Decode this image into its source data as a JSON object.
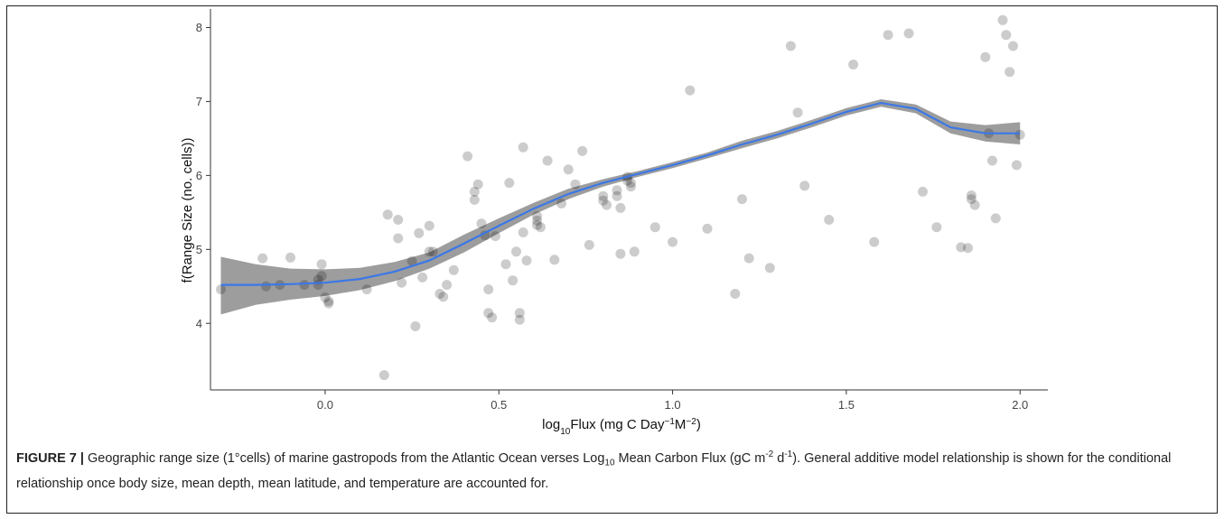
{
  "chart_data": {
    "type": "scatter",
    "xlabel_html": "log<tspan baseline-shift='sub' font-size='10'>10</tspan>Flux (mg C Day<tspan baseline-shift='super' font-size='10'>−1</tspan>M<tspan baseline-shift='super' font-size='10'>−2</tspan>)",
    "ylabel": "f(Range Size (no. cells))",
    "xlim": [
      -0.33,
      2.08
    ],
    "ylim": [
      3.1,
      8.25
    ],
    "x_ticks": [
      "0.0",
      "0.5",
      "1.0",
      "1.5",
      "2.0"
    ],
    "x_tick_values": [
      0.0,
      0.5,
      1.0,
      1.5,
      2.0
    ],
    "y_ticks": [
      "4",
      "5",
      "6",
      "7",
      "8"
    ],
    "y_tick_values": [
      4,
      5,
      6,
      7,
      8
    ],
    "grid": false,
    "point_color": "#000000",
    "point_opacity": 0.2,
    "smooth_color": "#3b78e7",
    "ribbon_color": "#8c8c8c",
    "smooth_fit": {
      "x": [
        -0.3,
        -0.2,
        -0.1,
        0.0,
        0.1,
        0.2,
        0.3,
        0.4,
        0.5,
        0.6,
        0.7,
        0.8,
        0.9,
        1.0,
        1.1,
        1.2,
        1.3,
        1.4,
        1.5,
        1.6,
        1.7,
        1.8,
        1.9,
        2.0
      ],
      "y": [
        4.52,
        4.52,
        4.53,
        4.55,
        4.6,
        4.7,
        4.85,
        5.08,
        5.32,
        5.55,
        5.75,
        5.9,
        6.02,
        6.14,
        6.27,
        6.42,
        6.55,
        6.7,
        6.86,
        6.98,
        6.9,
        6.65,
        6.57,
        6.57
      ],
      "lower": [
        4.12,
        4.25,
        4.32,
        4.37,
        4.45,
        4.57,
        4.74,
        4.96,
        5.22,
        5.47,
        5.68,
        5.85,
        5.98,
        6.1,
        6.23,
        6.37,
        6.5,
        6.65,
        6.81,
        6.93,
        6.84,
        6.57,
        6.46,
        6.42
      ],
      "upper": [
        4.9,
        4.8,
        4.74,
        4.73,
        4.75,
        4.83,
        4.96,
        5.2,
        5.42,
        5.63,
        5.82,
        5.95,
        6.06,
        6.18,
        6.31,
        6.47,
        6.6,
        6.75,
        6.91,
        7.03,
        6.96,
        6.73,
        6.68,
        6.72
      ]
    },
    "points": [
      [
        -0.3,
        4.46
      ],
      [
        -0.18,
        4.88
      ],
      [
        -0.17,
        4.5
      ],
      [
        -0.13,
        4.52
      ],
      [
        -0.1,
        4.89
      ],
      [
        -0.06,
        4.52
      ],
      [
        -0.02,
        4.52
      ],
      [
        -0.02,
        4.59
      ],
      [
        -0.01,
        4.8
      ],
      [
        -0.01,
        4.64
      ],
      [
        0.0,
        4.35
      ],
      [
        0.01,
        4.27
      ],
      [
        0.01,
        4.3
      ],
      [
        0.12,
        4.46
      ],
      [
        0.17,
        3.3
      ],
      [
        0.18,
        5.47
      ],
      [
        0.21,
        5.4
      ],
      [
        0.21,
        5.15
      ],
      [
        0.22,
        4.55
      ],
      [
        0.25,
        4.84
      ],
      [
        0.26,
        3.96
      ],
      [
        0.27,
        5.22
      ],
      [
        0.28,
        4.62
      ],
      [
        0.3,
        5.32
      ],
      [
        0.3,
        4.97
      ],
      [
        0.31,
        4.97
      ],
      [
        0.33,
        4.4
      ],
      [
        0.34,
        4.36
      ],
      [
        0.35,
        4.52
      ],
      [
        0.37,
        4.72
      ],
      [
        0.41,
        6.26
      ],
      [
        0.43,
        5.67
      ],
      [
        0.43,
        5.78
      ],
      [
        0.44,
        5.88
      ],
      [
        0.45,
        5.35
      ],
      [
        0.46,
        5.19
      ],
      [
        0.47,
        4.46
      ],
      [
        0.47,
        4.14
      ],
      [
        0.48,
        4.08
      ],
      [
        0.49,
        5.18
      ],
      [
        0.52,
        4.8
      ],
      [
        0.53,
        5.9
      ],
      [
        0.54,
        4.58
      ],
      [
        0.55,
        4.97
      ],
      [
        0.56,
        4.05
      ],
      [
        0.56,
        4.14
      ],
      [
        0.57,
        6.38
      ],
      [
        0.57,
        5.23
      ],
      [
        0.58,
        4.85
      ],
      [
        0.61,
        5.45
      ],
      [
        0.61,
        5.39
      ],
      [
        0.61,
        5.33
      ],
      [
        0.62,
        5.3
      ],
      [
        0.64,
        6.2
      ],
      [
        0.66,
        4.86
      ],
      [
        0.68,
        5.62
      ],
      [
        0.7,
        6.08
      ],
      [
        0.72,
        5.88
      ],
      [
        0.74,
        6.33
      ],
      [
        0.76,
        5.06
      ],
      [
        0.8,
        5.72
      ],
      [
        0.8,
        5.66
      ],
      [
        0.81,
        5.6
      ],
      [
        0.84,
        5.8
      ],
      [
        0.84,
        5.72
      ],
      [
        0.85,
        5.56
      ],
      [
        0.87,
        5.98
      ],
      [
        0.87,
        5.93
      ],
      [
        0.88,
        5.9
      ],
      [
        0.88,
        5.85
      ],
      [
        0.89,
        4.97
      ],
      [
        0.85,
        4.94
      ],
      [
        0.95,
        5.3
      ],
      [
        1.0,
        5.1
      ],
      [
        1.05,
        7.15
      ],
      [
        1.1,
        5.28
      ],
      [
        1.18,
        4.4
      ],
      [
        1.2,
        5.68
      ],
      [
        1.22,
        4.88
      ],
      [
        1.28,
        4.75
      ],
      [
        1.34,
        7.75
      ],
      [
        1.36,
        6.85
      ],
      [
        1.38,
        5.86
      ],
      [
        1.45,
        5.4
      ],
      [
        1.52,
        7.5
      ],
      [
        1.58,
        5.1
      ],
      [
        1.62,
        7.9
      ],
      [
        1.68,
        7.92
      ],
      [
        1.72,
        5.78
      ],
      [
        1.76,
        5.3
      ],
      [
        1.83,
        5.03
      ],
      [
        1.85,
        5.02
      ],
      [
        1.86,
        5.68
      ],
      [
        1.86,
        5.73
      ],
      [
        1.87,
        5.6
      ],
      [
        1.9,
        7.6
      ],
      [
        1.91,
        6.57
      ],
      [
        1.92,
        6.2
      ],
      [
        1.93,
        5.42
      ],
      [
        1.95,
        8.1
      ],
      [
        1.96,
        7.9
      ],
      [
        1.97,
        7.4
      ],
      [
        1.98,
        7.75
      ],
      [
        1.99,
        6.14
      ],
      [
        2.0,
        6.55
      ]
    ]
  },
  "caption": {
    "figure_label": "FIGURE 7 |",
    "text_part1": " Geographic range size (1°cells) of marine gastropods from the Atlantic Ocean verses Log",
    "text_sub": "10",
    "text_part2": " Mean Carbon Flux (gC m",
    "text_sup1": "-2",
    "text_part3": " d",
    "text_sup2": "-1",
    "text_part4": "). General additive model relationship is shown for the conditional relationship once body size, mean depth, mean latitude, and temperature are accounted for."
  }
}
